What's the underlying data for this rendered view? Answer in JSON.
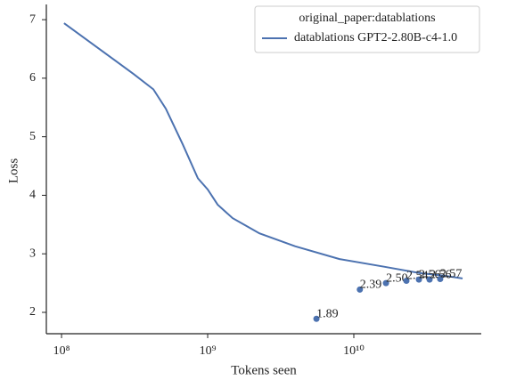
{
  "chart_data": {
    "type": "line",
    "xlabel": "Tokens seen",
    "ylabel": "Loss",
    "xscale": "log",
    "xlim": [
      78700000,
      74500000000
    ],
    "ylim": [
      1.635,
      7.26
    ],
    "xticks": [
      {
        "value": 100000000,
        "label": "10⁸"
      },
      {
        "value": 1000000000,
        "label": "10⁹"
      },
      {
        "value": 10000000000,
        "label": "10¹⁰"
      }
    ],
    "yticks": [
      2,
      3,
      4,
      5,
      6,
      7
    ],
    "legend_title": "original_paper:datablations",
    "legend_position": "upper right",
    "series": [
      {
        "type": "line",
        "name": "datablations GPT2-2.80B-c4-1.0",
        "color": "#4c72b0",
        "x": [
          104000000,
          312000000,
          425000000,
          517000000,
          675000000,
          857000000,
          1000000000,
          1170000000,
          1480000000,
          2260000000,
          3960000000,
          7980000000,
          16100000000,
          28300000000,
          40200000000,
          55500000000
        ],
        "values": [
          6.94,
          6.07,
          5.81,
          5.48,
          4.87,
          4.29,
          4.1,
          3.84,
          3.61,
          3.35,
          3.13,
          2.91,
          2.78,
          2.67,
          2.63,
          2.58
        ]
      },
      {
        "type": "scatter",
        "color": "#4c72b0",
        "x": [
          5550000000,
          11000000000,
          16600000000,
          22900000000,
          27900000000,
          33000000000,
          39000000000
        ],
        "values": [
          1.89,
          2.39,
          2.5,
          2.54,
          2.56,
          2.56,
          2.57
        ],
        "value_labels": [
          "1.89",
          "2.39",
          "2.50",
          "2.54",
          "2.56",
          "2.56",
          "2.57"
        ]
      }
    ]
  }
}
